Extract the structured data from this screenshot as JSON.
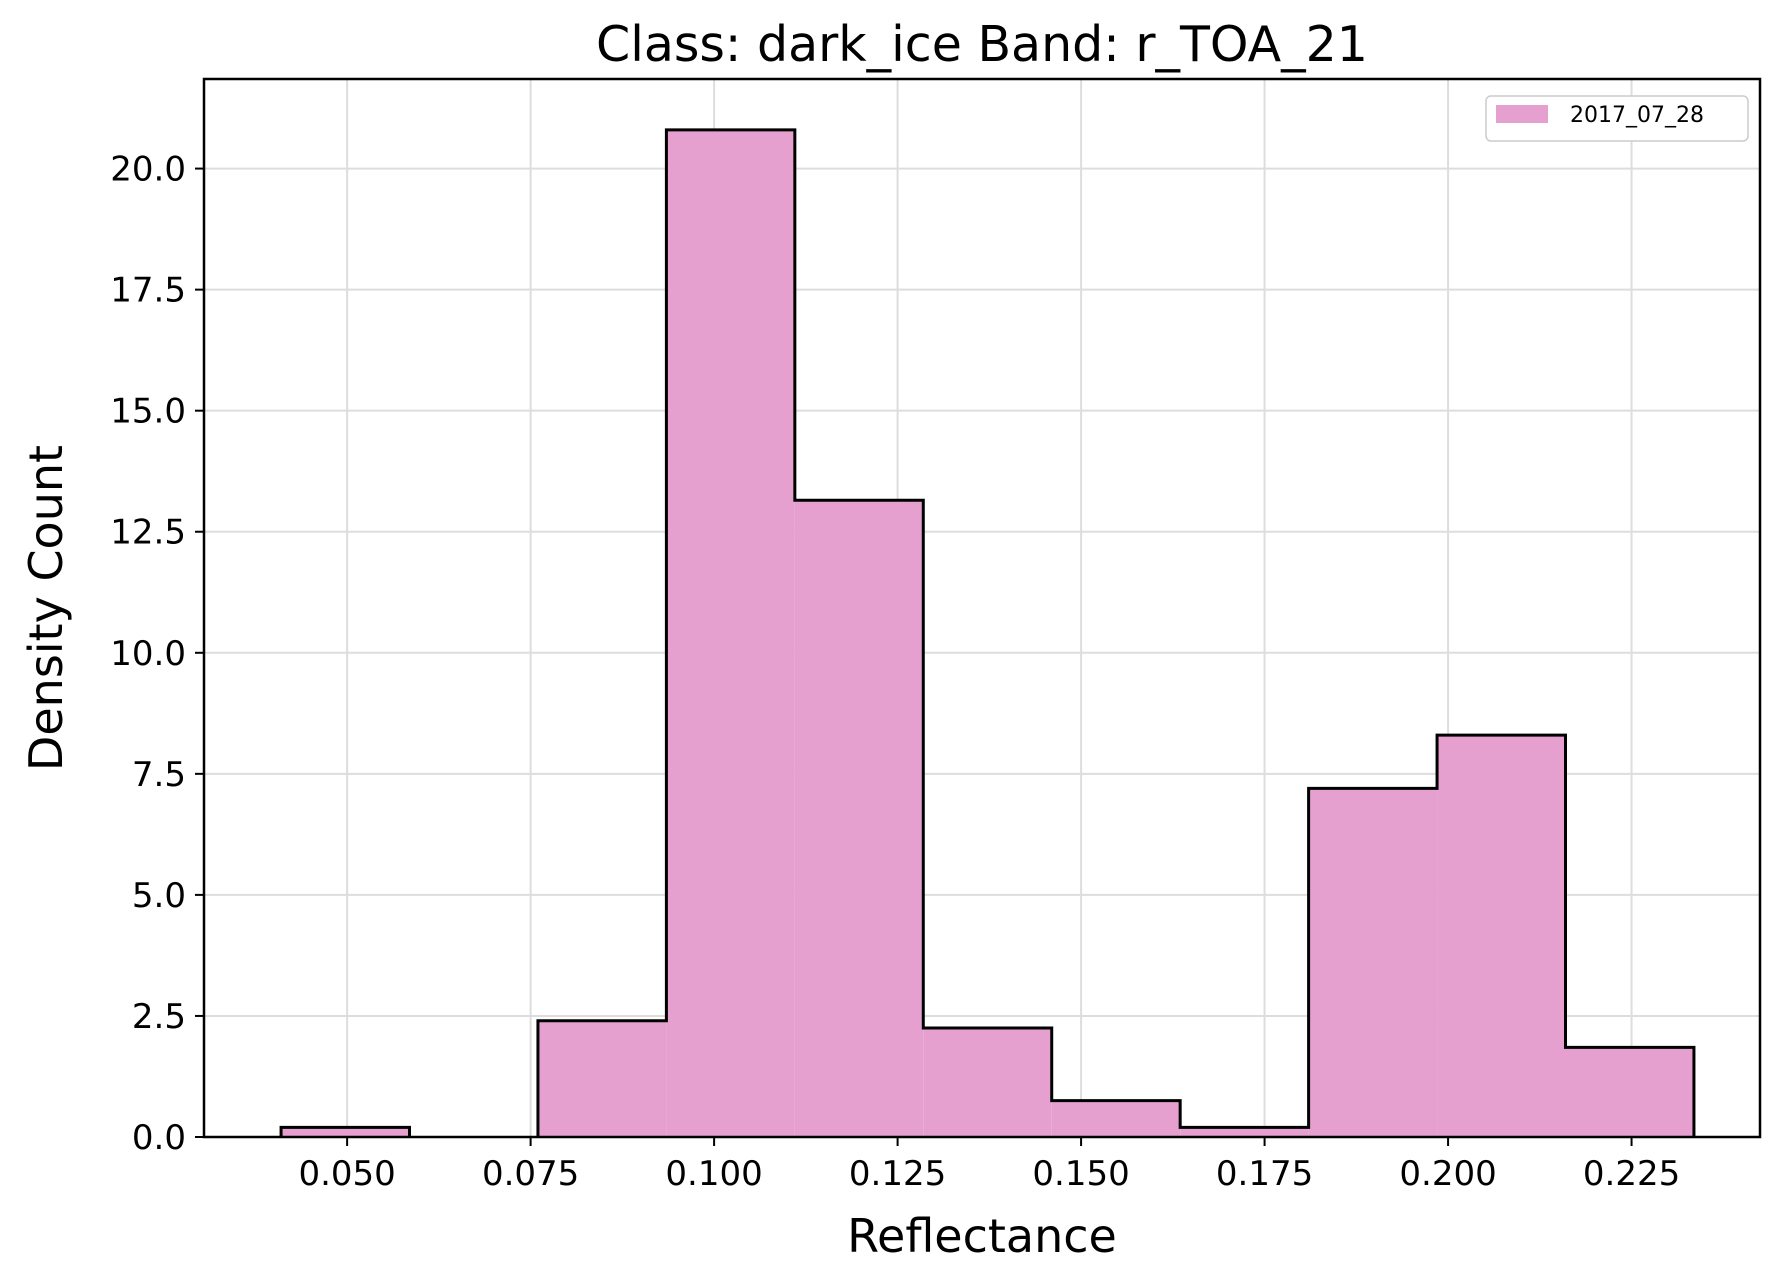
{
  "chart_data": {
    "type": "bar",
    "title": "Class: dark_ice Band: r_TOA_21",
    "xlabel": "Reflectance",
    "ylabel": "Density Count",
    "xlim": [
      0.0305,
      0.2425
    ],
    "ylim": [
      0,
      21.85
    ],
    "xticks": [
      0.05,
      0.075,
      0.1,
      0.125,
      0.15,
      0.175,
      0.2,
      0.225
    ],
    "xtick_labels": [
      "0.050",
      "0.075",
      "0.100",
      "0.125",
      "0.150",
      "0.175",
      "0.200",
      "0.225"
    ],
    "yticks": [
      0,
      2.5,
      5,
      7.5,
      10,
      12.5,
      15,
      17.5,
      20
    ],
    "ytick_labels": [
      "0.0",
      "2.5",
      "5.0",
      "7.5",
      "10.0",
      "12.5",
      "15.0",
      "17.5",
      "20.0"
    ],
    "grid": true,
    "legend_position": "top-right",
    "bin_edges": [
      0.041,
      0.0585,
      0.076,
      0.0935,
      0.111,
      0.1285,
      0.146,
      0.1635,
      0.181,
      0.1985,
      0.216,
      0.2335
    ],
    "series": [
      {
        "name": "2017_07_28",
        "color": "#e6a0d0",
        "edgecolor": "#000000",
        "values": [
          0.2,
          0.0,
          2.4,
          20.8,
          13.15,
          2.25,
          0.75,
          0.2,
          7.2,
          8.3,
          1.85
        ]
      }
    ]
  }
}
